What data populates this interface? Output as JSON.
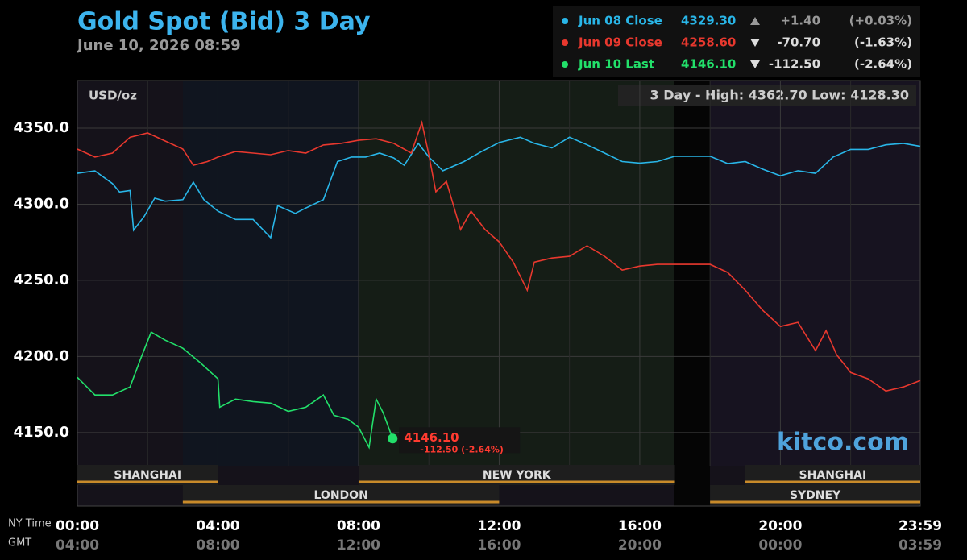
{
  "chart_data": {
    "type": "line",
    "title": "Gold Spot (Bid) 3 Day",
    "subtitle": "June 10, 2026 08:59",
    "unit_label": "USD/oz",
    "range_text": "3 Day - High: 4362.70  Low: 4128.30",
    "watermark": "kitco.com",
    "x_label": "NY Time",
    "gmt_label": "GMT",
    "xlim": [
      0,
      23.98
    ],
    "xticks": [
      {
        "value": 0,
        "label": "00:00"
      },
      {
        "value": 4,
        "label": "04:00"
      },
      {
        "value": 8,
        "label": "08:00"
      },
      {
        "value": 12,
        "label": "12:00"
      },
      {
        "value": 16,
        "label": "16:00"
      },
      {
        "value": 20,
        "label": "20:00"
      },
      {
        "value": 23.98,
        "label": "23:59"
      }
    ],
    "gmt_labels": [
      "04:00",
      "08:00",
      "12:00",
      "16:00",
      "20:00",
      "00:00",
      "03:59"
    ],
    "ylim": [
      4101.8,
      4381.2
    ],
    "yticks": [
      {
        "value": 4150,
        "label": "4150.0"
      },
      {
        "value": 4200,
        "label": "4200.0"
      },
      {
        "value": 4250,
        "label": "4250.0"
      },
      {
        "value": 4300,
        "label": "4300.0"
      },
      {
        "value": 4350,
        "label": "4350.0"
      }
    ],
    "grid": true,
    "sessions_upper": [
      {
        "name": "SHANGHAI",
        "start": 0,
        "end": 4
      },
      {
        "name": "NEW YORK",
        "start": 8,
        "end": 17
      },
      {
        "name": "SHANGHAI",
        "start": 19,
        "end": 23.98
      }
    ],
    "sessions_lower": [
      {
        "name": "LONDON",
        "start": 3,
        "end": 12
      },
      {
        "name": "SYDNEY",
        "start": 18,
        "end": 23.98
      }
    ],
    "last_value_label": "4146.10",
    "last_change_label": "-112.50 (-2.64%)",
    "series": [
      {
        "name": "Jun 08 Close",
        "color": "#29b6e8",
        "price": "4329.30",
        "direction": "up",
        "change": "+1.40",
        "change_pct": "(+0.03%)",
        "x": [
          0,
          0.5,
          1,
          1.2,
          1.5,
          1.6,
          1.9,
          2.2,
          2.5,
          3,
          3.3,
          3.6,
          4,
          4.5,
          5,
          5.5,
          5.7,
          6.2,
          6.5,
          7,
          7.4,
          7.8,
          8.2,
          8.6,
          9,
          9.3,
          9.7,
          10,
          10.4,
          11,
          11.5,
          12,
          12.6,
          13,
          13.5,
          14,
          14.5,
          15,
          15.5,
          16,
          16.5,
          17,
          18,
          18.5,
          19,
          19.5,
          20,
          20.5,
          21,
          21.5,
          22,
          22.5,
          23,
          23.5,
          23.98
        ],
        "values": [
          4320.3,
          4321.9,
          4313.5,
          4308,
          4309,
          4283,
          4292,
          4304,
          4302,
          4303,
          4314.5,
          4303,
          4295.4,
          4290,
          4290,
          4278,
          4299,
          4294,
          4297.5,
          4303,
          4328,
          4331,
          4331,
          4333.6,
          4330.4,
          4325.6,
          4340,
          4331,
          4322,
          4328,
          4334.6,
          4340.5,
          4344,
          4340,
          4337,
          4344,
          4339,
          4333.6,
          4328,
          4327,
          4328,
          4331.5,
          4331.5,
          4326.7,
          4328,
          4323,
          4318.7,
          4322,
          4320.3,
          4331,
          4336,
          4336,
          4339,
          4340,
          4338
        ]
      },
      {
        "name": "Jun 09 Close",
        "color": "#e8382e",
        "price": "4258.60",
        "direction": "down",
        "change": "-70.70",
        "change_pct": "(-1.63%)",
        "x": [
          0,
          0.5,
          1,
          1.5,
          2,
          2.5,
          3,
          3.3,
          3.7,
          4,
          4.5,
          5,
          5.5,
          6,
          6.5,
          7,
          7.5,
          8,
          8.5,
          9,
          9.5,
          9.8,
          10,
          10.2,
          10.5,
          10.9,
          11.2,
          11.6,
          12,
          12.4,
          12.8,
          13,
          13.5,
          14,
          14.5,
          15,
          15.5,
          16,
          16.5,
          17,
          18,
          18.5,
          19,
          19.5,
          20,
          20.5,
          21,
          21.3,
          21.6,
          22,
          22.5,
          23,
          23.5,
          23.98
        ],
        "values": [
          4336.2,
          4331,
          4333.6,
          4344,
          4346.8,
          4341.5,
          4336.2,
          4325.6,
          4328,
          4331,
          4334.6,
          4333.6,
          4332.5,
          4335.2,
          4333.6,
          4338.9,
          4340,
          4342,
          4343,
          4340,
          4333.6,
          4353.7,
          4332.5,
          4308.2,
          4315,
          4283.3,
          4295.4,
          4283.3,
          4275.3,
          4262,
          4243.5,
          4262,
          4264.7,
          4265.8,
          4272.7,
          4265.8,
          4256.8,
          4259.4,
          4260.5,
          4260.5,
          4260.5,
          4255.2,
          4243.5,
          4230.3,
          4219.7,
          4222.4,
          4203.8,
          4217,
          4201.2,
          4189.5,
          4185.3,
          4177.3,
          4180,
          4184.2
        ]
      },
      {
        "name": "Jun 10 Last",
        "color": "#22e06a",
        "price": "4146.10",
        "direction": "down",
        "change": "-112.50",
        "change_pct": "(-2.64%)",
        "x": [
          0,
          0.5,
          1,
          1.5,
          1.8,
          2.1,
          2.5,
          3,
          3.5,
          4,
          4.05,
          4.5,
          5,
          5.5,
          6,
          6.5,
          7,
          7.3,
          7.7,
          8,
          8.3,
          8.5,
          8.7,
          8.97
        ],
        "values": [
          4186.3,
          4174.7,
          4174.7,
          4180,
          4198.5,
          4216,
          4210.7,
          4205.4,
          4195.9,
          4185.3,
          4166.7,
          4172,
          4170.4,
          4169.4,
          4164,
          4166.7,
          4174.7,
          4161.4,
          4158.8,
          4153.5,
          4140.3,
          4172,
          4163,
          4146.1
        ]
      }
    ]
  }
}
